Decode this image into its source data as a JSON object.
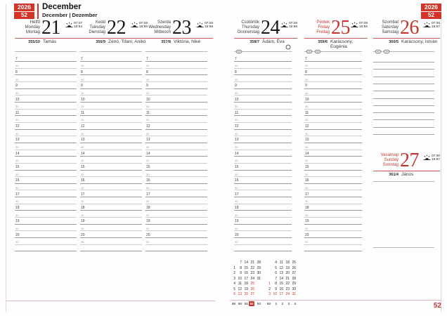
{
  "colors": {
    "accent_red": "#c2362e",
    "badge_red": "#d43327",
    "underline_red": "#c55a52",
    "hour_line": "#989898",
    "half_hour_line": "#cccccc",
    "footer_rule_pink": "#e0b7b2"
  },
  "header": {
    "year": "2026",
    "week_number": "52",
    "month_title": "December",
    "month_subtitle": "December | Dezember",
    "page_number": "52"
  },
  "labels": {
    "half_hour": "30"
  },
  "hours": [
    "7",
    "8",
    "9",
    "10",
    "11",
    "12",
    "13",
    "14",
    "15",
    "16",
    "17",
    "18",
    "19",
    "20"
  ],
  "days": [
    {
      "id": "monday",
      "names": [
        "Hétfő",
        "Monday",
        "Montag"
      ],
      "date": "21",
      "sunrise": "07:27",
      "sunset": "15:54",
      "day_of_year": "355/10",
      "namedays": "Tamás",
      "red_names": false,
      "red_date": false,
      "markers": 0,
      "moon": false
    },
    {
      "id": "tuesday",
      "names": [
        "Kedd",
        "Tuesday",
        "Dienstag"
      ],
      "date": "22",
      "sunrise": "07:28",
      "sunset": "15:55",
      "day_of_year": "356/9",
      "namedays": "Zénó, Tifani, Anikó",
      "red_names": false,
      "red_date": false,
      "markers": 0,
      "moon": false
    },
    {
      "id": "wednesday",
      "names": [
        "Szerda",
        "Wednesday",
        "Mittwoch"
      ],
      "date": "23",
      "sunrise": "07:29",
      "sunset": "15:55",
      "day_of_year": "357/8",
      "namedays": "Viktória, Niké",
      "red_names": false,
      "red_date": false,
      "markers": 0,
      "moon": false
    },
    {
      "id": "thursday",
      "names": [
        "Csütörtök",
        "Thursday",
        "Donnerstag"
      ],
      "date": "24",
      "sunrise": "07:29",
      "sunset": "15:56",
      "day_of_year": "358/7",
      "namedays": "Ádám, Éva",
      "red_names": false,
      "red_date": false,
      "markers": 1,
      "moon": true
    },
    {
      "id": "friday",
      "names": [
        "Péntek",
        "Friday",
        "Freitag"
      ],
      "date": "25",
      "sunrise": "07:29",
      "sunset": "15:56",
      "day_of_year": "359/6",
      "namedays": "Karácsony, Eugénia",
      "red_names": true,
      "red_date": true,
      "markers": 2,
      "moon": false
    },
    {
      "id": "saturday",
      "names": [
        "Szombat",
        "Saturday",
        "Samstag"
      ],
      "date": "26",
      "sunrise": "07:30",
      "sunset": "15:57",
      "day_of_year": "360/5",
      "namedays": "Karácsony, István",
      "red_names": false,
      "red_date": true,
      "markers": 2,
      "moon": false
    },
    {
      "id": "sunday",
      "names": [
        "Vasárnap",
        "Sunday",
        "Sonntag"
      ],
      "date": "27",
      "sunrise": "07:30",
      "sunset": "15:57",
      "day_of_year": "361/4",
      "namedays": "János",
      "red_names": true,
      "red_date": true,
      "markers": 0,
      "moon": false
    }
  ],
  "mini_calendar": {
    "december": {
      "grid": [
        [
          "",
          "7",
          "14",
          "21",
          "28"
        ],
        [
          "1",
          "8",
          "15",
          "22",
          "29"
        ],
        [
          "2",
          "9",
          "16",
          "23",
          "30"
        ],
        [
          "3",
          "10",
          "17",
          "24",
          "31"
        ],
        [
          "4",
          "11",
          "18",
          "25",
          ""
        ],
        [
          "5",
          "12",
          "19",
          "26",
          ""
        ],
        [
          "6",
          "13",
          "20",
          "27",
          ""
        ]
      ],
      "red": [
        [
          0,
          0,
          0,
          0,
          0
        ],
        [
          0,
          0,
          0,
          0,
          0
        ],
        [
          0,
          0,
          0,
          0,
          0
        ],
        [
          0,
          0,
          0,
          0,
          0
        ],
        [
          0,
          0,
          0,
          1,
          0
        ],
        [
          0,
          0,
          0,
          1,
          0
        ],
        [
          1,
          1,
          1,
          1,
          0
        ]
      ],
      "week_numbers": [
        "49",
        "50",
        "51",
        "52",
        "53"
      ],
      "highlighted_week": "52"
    },
    "january": {
      "grid": [
        [
          "",
          "4",
          "11",
          "18",
          "25"
        ],
        [
          "",
          "5",
          "12",
          "19",
          "26"
        ],
        [
          "",
          "6",
          "13",
          "20",
          "27"
        ],
        [
          "",
          "7",
          "14",
          "21",
          "28"
        ],
        [
          "1",
          "8",
          "15",
          "22",
          "29"
        ],
        [
          "2",
          "9",
          "16",
          "23",
          "30"
        ],
        [
          "3",
          "10",
          "17",
          "24",
          "31"
        ]
      ],
      "red": [
        [
          0,
          0,
          0,
          0,
          0
        ],
        [
          0,
          0,
          0,
          0,
          0
        ],
        [
          0,
          0,
          0,
          0,
          0
        ],
        [
          0,
          0,
          0,
          0,
          0
        ],
        [
          1,
          0,
          0,
          0,
          0
        ],
        [
          0,
          0,
          0,
          0,
          0
        ],
        [
          1,
          1,
          1,
          1,
          1
        ]
      ],
      "week_numbers": [
        "53",
        "1",
        "2",
        "3",
        "4"
      ]
    }
  },
  "icons": {
    "sun": "sunrise-sunset-icon",
    "moon": "full-moon-icon",
    "marker": "oval-marker-icon"
  }
}
